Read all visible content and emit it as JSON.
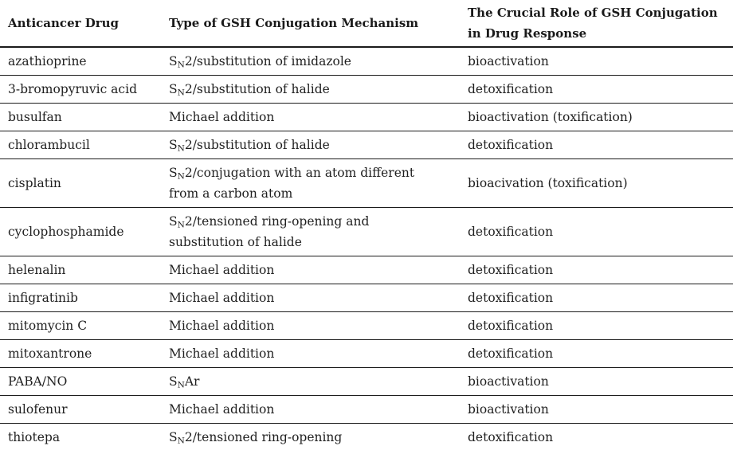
{
  "colors": {
    "text": "#1f1f1f",
    "rule": "#1b1b1b",
    "background": "#ffffff"
  },
  "table": {
    "columns": [
      {
        "label": "Anticancer Drug"
      },
      {
        "label": "Type of GSH Conjugation Mechanism"
      },
      {
        "label": "The Crucial Role of GSH Conjugation in Drug Response"
      }
    ],
    "rows": [
      {
        "drug": "azathioprine",
        "mechanism": "S~N~2/substitution of imidazole",
        "role": "bioactivation"
      },
      {
        "drug": "3-bromopyruvic acid",
        "mechanism": "S~N~2/substitution of halide",
        "role": "detoxification"
      },
      {
        "drug": "busulfan",
        "mechanism": "Michael addition",
        "role": "bioactivation (toxification)"
      },
      {
        "drug": "chlorambucil",
        "mechanism": "S~N~2/substitution of halide",
        "role": "detoxification"
      },
      {
        "drug": "cisplatin",
        "mechanism": "S~N~2/conjugation with an atom different from a carbon atom",
        "role": "bioacivation (toxification)"
      },
      {
        "drug": "cyclophosphamide",
        "mechanism": "S~N~2/tensioned ring-opening and substitution of halide",
        "role": "detoxification"
      },
      {
        "drug": "helenalin",
        "mechanism": "Michael addition",
        "role": "detoxification"
      },
      {
        "drug": "infigratinib",
        "mechanism": "Michael addition",
        "role": "detoxification"
      },
      {
        "drug": "mitomycin C",
        "mechanism": "Michael addition",
        "role": "detoxification"
      },
      {
        "drug": "mitoxantrone",
        "mechanism": "Michael addition",
        "role": "detoxification"
      },
      {
        "drug": "PABA/NO",
        "mechanism": "S~N~Ar",
        "role": "bioactivation"
      },
      {
        "drug": "sulofenur",
        "mechanism": "Michael addition",
        "role": "bioactivation"
      },
      {
        "drug": "thiotepa",
        "mechanism": "S~N~2/tensioned ring-opening",
        "role": "detoxification"
      }
    ]
  }
}
